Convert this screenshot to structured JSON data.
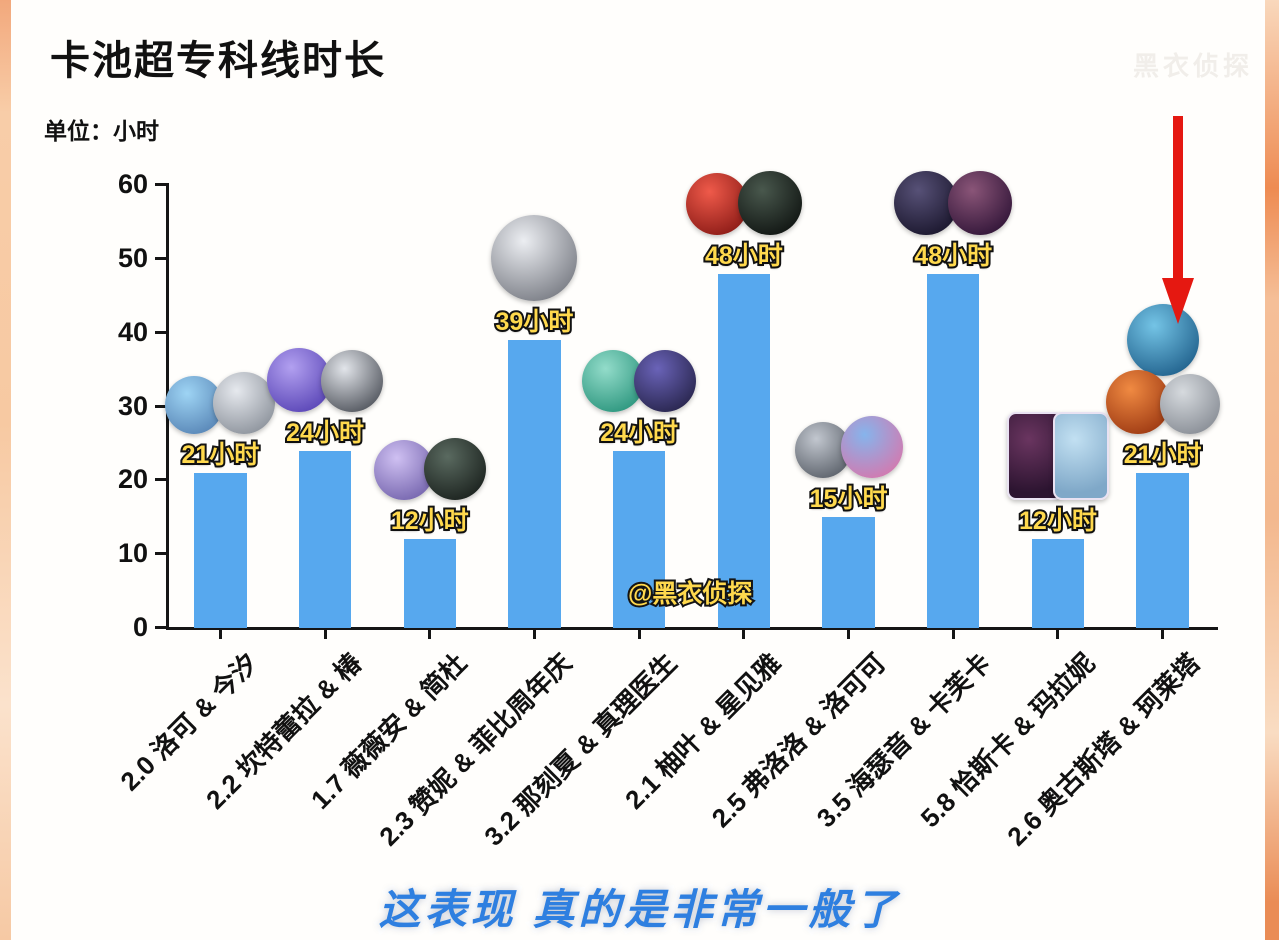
{
  "page": {
    "title": "卡池超专科线时长",
    "unit_label": "单位：小时",
    "watermark": "@黑衣侦探",
    "corner_watermark": "黑衣侦探",
    "caption": "这表现  真的是非常一般了"
  },
  "chart_data": {
    "type": "bar",
    "title": "卡池超专科线时长",
    "unit": "小时",
    "ylabel": "小时",
    "xlabel": "",
    "ylim": [
      0,
      60
    ],
    "yticks": [
      0,
      10,
      20,
      30,
      40,
      50,
      60
    ],
    "grid": false,
    "legend": "none",
    "bar_color": "#57a8ee",
    "categories": [
      "2.0 洛可 & 今汐",
      "2.2 坎特蕾拉 & 椿",
      "1.7 薇薇安 & 简杜",
      "2.3 赞妮 & 菲比周年庆",
      "3.2 那刻夏 & 真理医生",
      "2.1 柚叶 & 星见雅",
      "2.5 弗洛洛 & 洛可可",
      "3.5 海瑟音 & 卡芙卡",
      "5.8 恰斯卡 & 玛拉妮",
      "2.6 奥古斯塔 & 珂莱塔"
    ],
    "values": [
      21,
      24,
      12,
      39,
      24,
      48,
      15,
      48,
      12,
      21
    ],
    "value_labels": [
      "21小时",
      "24小时",
      "12小时",
      "39小时",
      "24小时",
      "48小时",
      "15小时",
      "48小时",
      "12小时",
      "21小时"
    ],
    "arrow_points_to_index": 9,
    "arrow_color": "#e51811",
    "avatars": [
      [
        [
          {
            "colors": [
              "#9ed4f4",
              "#5a88b8"
            ],
            "shape": "circle",
            "size": 58
          },
          {
            "colors": [
              "#e6e9ee",
              "#8f959e"
            ],
            "shape": "circle",
            "size": 62
          }
        ]
      ],
      [
        [
          {
            "colors": [
              "#b2a0f0",
              "#5c48b8"
            ],
            "shape": "circle",
            "size": 64
          },
          {
            "colors": [
              "#e2e5ea",
              "#565a62"
            ],
            "shape": "circle",
            "size": 62
          }
        ]
      ],
      [
        [
          {
            "colors": [
              "#cfc0f2",
              "#7868b0"
            ],
            "shape": "circle",
            "size": 60
          },
          {
            "colors": [
              "#5a6a60",
              "#1d2420"
            ],
            "shape": "circle",
            "size": 62
          }
        ]
      ],
      [
        [
          {
            "colors": [
              "#eceef2",
              "#7d8088"
            ],
            "shape": "circle",
            "size": 86
          }
        ]
      ],
      [
        [
          {
            "colors": [
              "#93dcca",
              "#2f9880"
            ],
            "shape": "circle",
            "size": 62
          },
          {
            "colors": [
              "#6a63b8",
              "#2a2750"
            ],
            "shape": "circle",
            "size": 62
          }
        ]
      ],
      [
        [
          {
            "colors": [
              "#ef5a4a",
              "#8f1d18"
            ],
            "shape": "circle",
            "size": 62
          },
          {
            "colors": [
              "#49584d",
              "#121714"
            ],
            "shape": "circle",
            "size": 64
          }
        ]
      ],
      [
        [
          {
            "colors": [
              "#c2c7cf",
              "#5f656e"
            ],
            "shape": "circle",
            "size": 56
          },
          {
            "colors": [
              "#86b4ec",
              "#d27ab0"
            ],
            "shape": "circle",
            "size": 62
          }
        ]
      ],
      [
        [
          {
            "colors": [
              "#575177",
              "#1c182f"
            ],
            "shape": "circle",
            "size": 64
          },
          {
            "colors": [
              "#8a5578",
              "#34173a"
            ],
            "shape": "circle",
            "size": 64
          }
        ]
      ],
      [
        [
          {
            "colors": [
              "#6a3560",
              "#2c1430"
            ],
            "shape": "card"
          },
          {
            "colors": [
              "#c2e0f2",
              "#7fa8c8"
            ],
            "shape": "card"
          }
        ]
      ],
      [
        [
          {
            "colors": [
              "#74c4e6",
              "#23648f"
            ],
            "shape": "circle",
            "size": 72
          }
        ],
        [
          {
            "colors": [
              "#f08a42",
              "#a03c14"
            ],
            "shape": "circle",
            "size": 64
          },
          {
            "colors": [
              "#d6dade",
              "#8b9098"
            ],
            "shape": "circle",
            "size": 60
          }
        ]
      ]
    ]
  }
}
